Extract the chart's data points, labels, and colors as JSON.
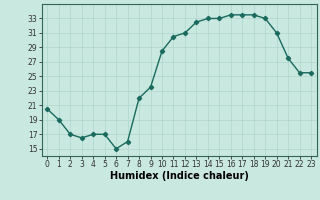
{
  "x": [
    0,
    1,
    2,
    3,
    4,
    5,
    6,
    7,
    8,
    9,
    10,
    11,
    12,
    13,
    14,
    15,
    16,
    17,
    18,
    19,
    20,
    21,
    22,
    23
  ],
  "y": [
    20.5,
    19.0,
    17.0,
    16.5,
    17.0,
    17.0,
    15.0,
    16.0,
    22.0,
    23.5,
    28.5,
    30.5,
    31.0,
    32.5,
    33.0,
    33.0,
    33.5,
    33.5,
    33.5,
    33.0,
    31.0,
    27.5,
    25.5,
    25.5
  ],
  "xlim": [
    -0.5,
    23.5
  ],
  "ylim": [
    14,
    35
  ],
  "yticks": [
    15,
    17,
    19,
    21,
    23,
    25,
    27,
    29,
    31,
    33
  ],
  "xticks": [
    0,
    1,
    2,
    3,
    4,
    5,
    6,
    7,
    8,
    9,
    10,
    11,
    12,
    13,
    14,
    15,
    16,
    17,
    18,
    19,
    20,
    21,
    22,
    23
  ],
  "xlabel": "Humidex (Indice chaleur)",
  "line_color": "#1a6b5e",
  "bg_color": "#c8e8e0",
  "grid_color": "#b0d4cc",
  "marker": "D",
  "marker_size": 2.2,
  "linewidth": 1.0,
  "tick_fontsize": 5.5,
  "xlabel_fontsize": 7.0
}
